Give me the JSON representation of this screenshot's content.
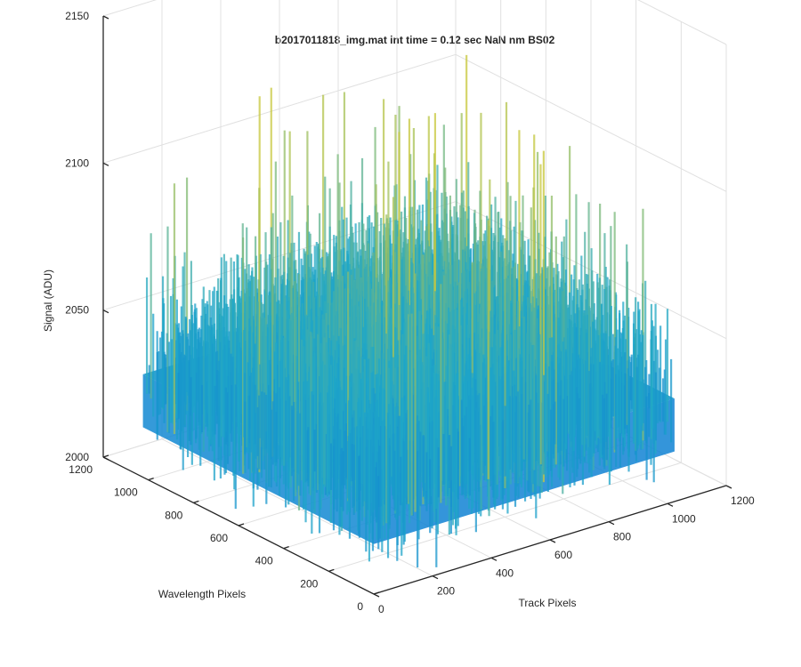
{
  "chart_data": {
    "type": "surface",
    "title": "b2017011818_img.mat int time = 0.12 sec  NaN nm BS02",
    "xlabel": "Track Pixels",
    "ylabel": "Wavelength Pixels",
    "zlabel": "Signal (ADU)",
    "xlim": [
      0,
      1200
    ],
    "ylim": [
      0,
      1200
    ],
    "zlim": [
      2000,
      2150
    ],
    "xticks": [
      "0",
      "200",
      "400",
      "600",
      "800",
      "1000",
      "1200"
    ],
    "yticks": [
      "0",
      "200",
      "400",
      "600",
      "800",
      "1000",
      "1200"
    ],
    "zticks": [
      "2000",
      "2050",
      "2100",
      "2150"
    ],
    "grid": true,
    "colormap": "parula",
    "colors": {
      "low": "#0a72d8",
      "mid": "#1fa8c8",
      "high": "#c8c83c",
      "grid": "#e0e0e0",
      "axis": "#262626"
    },
    "surface": {
      "x_extent": [
        0,
        1024
      ],
      "y_extent": [
        0,
        1024
      ],
      "mean_signal": 2035,
      "min_signal": 2000,
      "max_signal": 2128,
      "noise": "random"
    }
  }
}
